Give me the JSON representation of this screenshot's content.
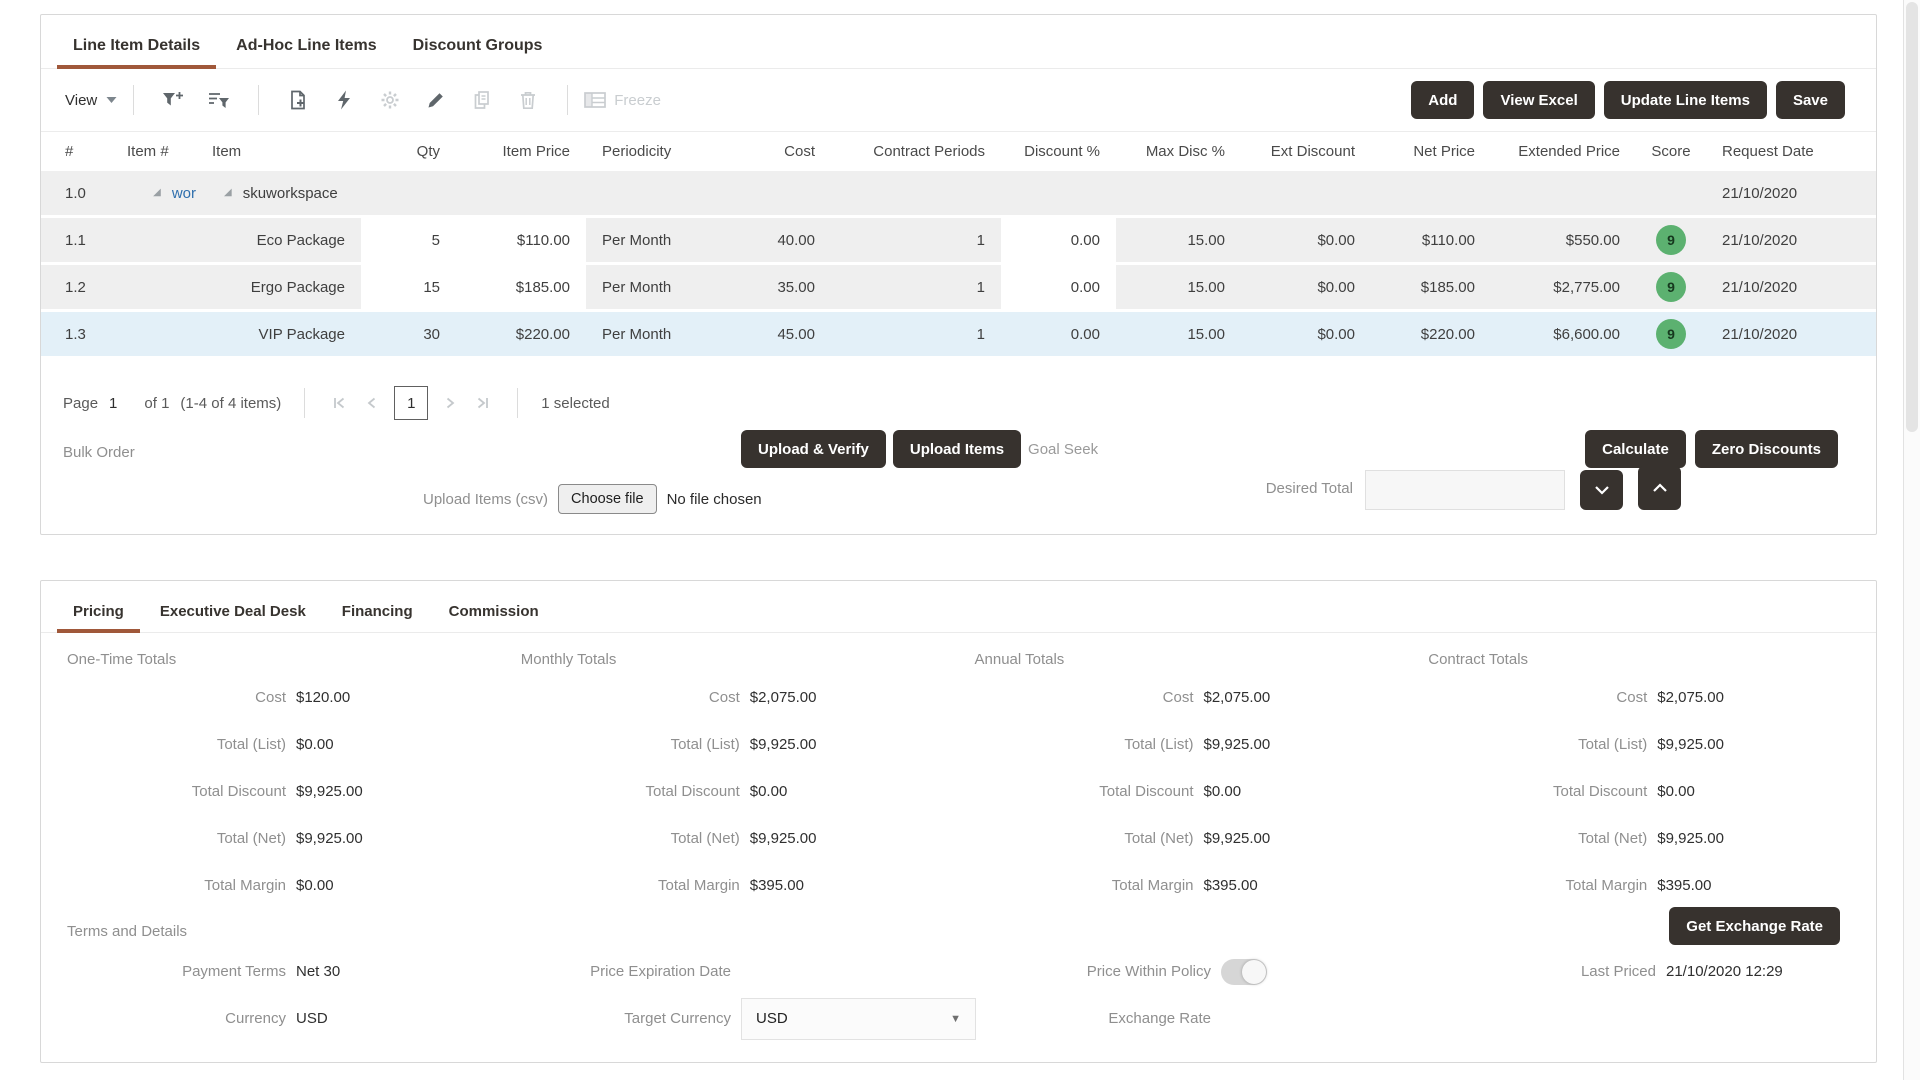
{
  "colors": {
    "accent_brown": "#a0583a",
    "dark_button": "#37322e",
    "row_gray": "#efefef",
    "selected_row": "#e3f0f8",
    "badge_green": "#5cb170",
    "link_blue": "#2f6fad"
  },
  "top_panel": {
    "tabs": [
      {
        "label": "Line Item Details",
        "active": true
      },
      {
        "label": "Ad-Hoc Line Items",
        "active": false
      },
      {
        "label": "Discount Groups",
        "active": false
      }
    ],
    "toolbar": {
      "view_label": "View",
      "freeze_label": "Freeze",
      "action_buttons": [
        "Add",
        "View Excel",
        "Update Line Items",
        "Save"
      ]
    },
    "table": {
      "columns": [
        "#",
        "Item #",
        "Item",
        "Qty",
        "Item Price",
        "Periodicity",
        "Cost",
        "Contract Periods",
        "Discount %",
        "Max Disc %",
        "Ext Discount",
        "Net Price",
        "Extended Price",
        "Score",
        "Request Date"
      ],
      "group_row": {
        "num": "1.0",
        "group_link": "wor",
        "group_name": "skuworkspace",
        "request_date": "21/10/2020"
      },
      "rows": [
        {
          "num": "1.1",
          "item": "Eco Package",
          "qty": "5",
          "item_price": "$110.00",
          "periodicity": "Per Month",
          "cost": "40.00",
          "contract_periods": "1",
          "discount_pct": "0.00",
          "max_disc_pct": "15.00",
          "ext_discount": "$0.00",
          "net_price": "$110.00",
          "extended_price": "$550.00",
          "score": "9",
          "request_date": "21/10/2020",
          "selected": false
        },
        {
          "num": "1.2",
          "item": "Ergo Package",
          "qty": "15",
          "item_price": "$185.00",
          "periodicity": "Per Month",
          "cost": "35.00",
          "contract_periods": "1",
          "discount_pct": "0.00",
          "max_disc_pct": "15.00",
          "ext_discount": "$0.00",
          "net_price": "$185.00",
          "extended_price": "$2,775.00",
          "score": "9",
          "request_date": "21/10/2020",
          "selected": false
        },
        {
          "num": "1.3",
          "item": "VIP Package",
          "qty": "30",
          "item_price": "$220.00",
          "periodicity": "Per Month",
          "cost": "45.00",
          "contract_periods": "1",
          "discount_pct": "0.00",
          "max_disc_pct": "15.00",
          "ext_discount": "$0.00",
          "net_price": "$220.00",
          "extended_price": "$6,600.00",
          "score": "9",
          "request_date": "21/10/2020",
          "selected": true
        }
      ]
    },
    "pagination": {
      "page_label": "Page",
      "page_value": "1",
      "of_label": "of 1",
      "range_label": "(1-4 of 4 items)",
      "selected_label": "1 selected"
    },
    "bulk": {
      "bulk_order_label": "Bulk Order",
      "upload_verify_button": "Upload & Verify",
      "upload_items_button": "Upload Items",
      "goal_seek_label": "Goal Seek",
      "upload_csv_label": "Upload Items (csv)",
      "choose_file_button": "Choose file",
      "no_file_label": "No file chosen",
      "calculate_button": "Calculate",
      "zero_discounts_button": "Zero Discounts",
      "desired_total_label": "Desired Total",
      "desired_total_value": ""
    }
  },
  "bottom_panel": {
    "tabs": [
      {
        "label": "Pricing",
        "active": true
      },
      {
        "label": "Executive Deal Desk",
        "active": false
      },
      {
        "label": "Financing",
        "active": false
      },
      {
        "label": "Commission",
        "active": false
      }
    ],
    "totals": [
      {
        "title": "One-Time Totals",
        "rows": [
          {
            "label": "Cost",
            "value": "$120.00"
          },
          {
            "label": "Total (List)",
            "value": "$0.00"
          },
          {
            "label": "Total Discount",
            "value": "$9,925.00"
          },
          {
            "label": "Total (Net)",
            "value": "$9,925.00"
          },
          {
            "label": "Total Margin",
            "value": "$0.00"
          }
        ]
      },
      {
        "title": "Monthly Totals",
        "rows": [
          {
            "label": "Cost",
            "value": "$2,075.00"
          },
          {
            "label": "Total (List)",
            "value": "$9,925.00"
          },
          {
            "label": "Total Discount",
            "value": "$0.00"
          },
          {
            "label": "Total (Net)",
            "value": "$9,925.00"
          },
          {
            "label": "Total Margin",
            "value": "$395.00"
          }
        ]
      },
      {
        "title": "Annual Totals",
        "rows": [
          {
            "label": "Cost",
            "value": "$2,075.00"
          },
          {
            "label": "Total (List)",
            "value": "$9,925.00"
          },
          {
            "label": "Total Discount",
            "value": "$0.00"
          },
          {
            "label": "Total (Net)",
            "value": "$9,925.00"
          },
          {
            "label": "Total Margin",
            "value": "$395.00"
          }
        ]
      },
      {
        "title": "Contract Totals",
        "rows": [
          {
            "label": "Cost",
            "value": "$2,075.00"
          },
          {
            "label": "Total (List)",
            "value": "$9,925.00"
          },
          {
            "label": "Total Discount",
            "value": "$0.00"
          },
          {
            "label": "Total (Net)",
            "value": "$9,925.00"
          },
          {
            "label": "Total Margin",
            "value": "$395.00"
          }
        ]
      }
    ],
    "terms": {
      "title": "Terms and Details",
      "get_exchange_rate_button": "Get Exchange Rate",
      "payment_terms_label": "Payment Terms",
      "payment_terms_value": "Net 30",
      "price_expiration_label": "Price Expiration Date",
      "price_expiration_value": "",
      "price_within_policy_label": "Price Within Policy",
      "last_priced_label": "Last Priced",
      "last_priced_value": "21/10/2020 12:29",
      "currency_label": "Currency",
      "currency_value": "USD",
      "target_currency_label": "Target Currency",
      "target_currency_value": "USD",
      "exchange_rate_label": "Exchange Rate",
      "exchange_rate_value": ""
    }
  }
}
